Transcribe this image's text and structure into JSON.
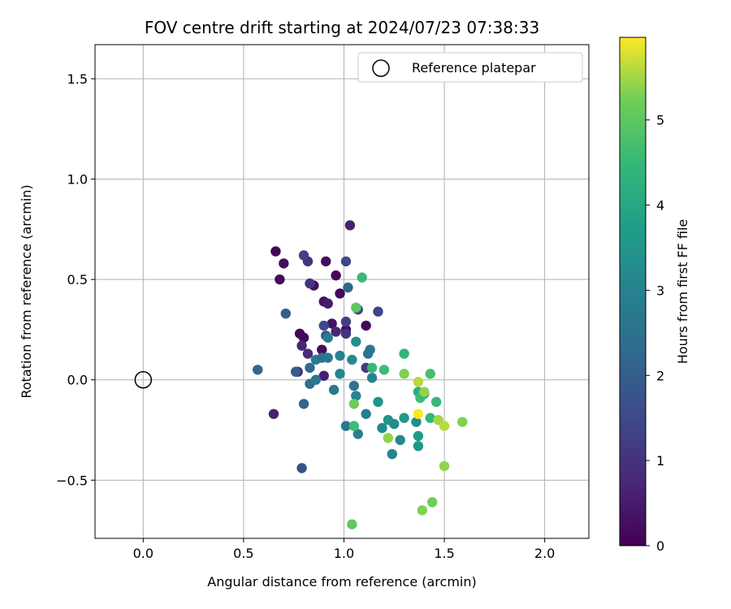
{
  "chart_data": {
    "type": "scatter",
    "title": "FOV centre drift starting at 2024/07/23 07:38:33",
    "xlabel": "Angular distance from reference (arcmin)",
    "ylabel": "Rotation from reference (arcmin)",
    "colorbar_label": "Hours from first FF file",
    "xlim": [
      -0.24,
      2.22
    ],
    "ylim": [
      -0.79,
      1.67
    ],
    "xticks": [
      0.0,
      0.5,
      1.0,
      1.5,
      2.0
    ],
    "xtick_labels": [
      "0.0",
      "0.5",
      "1.0",
      "1.5",
      "2.0"
    ],
    "yticks": [
      -0.5,
      0.0,
      0.5,
      1.0,
      1.5
    ],
    "ytick_labels": [
      "−0.5",
      "0.0",
      "0.5",
      "1.0",
      "1.5"
    ],
    "clim": [
      0,
      5.97
    ],
    "cticks": [
      0,
      1,
      2,
      3,
      4,
      5
    ],
    "ctick_labels": [
      "0",
      "1",
      "2",
      "3",
      "4",
      "5"
    ],
    "colormap": "viridis",
    "grid": true,
    "legend_position": "top-right",
    "reference": {
      "label": "Reference platepar",
      "x": 0.0,
      "y": 0.0
    },
    "points": [
      [
        0.66,
        0.64,
        0.1
      ],
      [
        0.7,
        0.58,
        0.2
      ],
      [
        0.68,
        0.5,
        0.15
      ],
      [
        0.78,
        0.23,
        0.1
      ],
      [
        0.8,
        0.21,
        0.15
      ],
      [
        0.85,
        0.47,
        0.25
      ],
      [
        0.91,
        0.59,
        0.2
      ],
      [
        0.96,
        0.52,
        0.1
      ],
      [
        0.98,
        0.43,
        0.15
      ],
      [
        0.9,
        0.39,
        0.3
      ],
      [
        0.92,
        0.38,
        0.5
      ],
      [
        0.89,
        0.15,
        0.2
      ],
      [
        0.94,
        0.28,
        0.3
      ],
      [
        1.01,
        0.25,
        0.25
      ],
      [
        1.03,
        0.77,
        0.6
      ],
      [
        1.11,
        0.27,
        0.15
      ],
      [
        0.82,
        0.59,
        1.0
      ],
      [
        0.8,
        0.62,
        1.3
      ],
      [
        0.83,
        0.48,
        1.0
      ],
      [
        0.79,
        0.17,
        0.7
      ],
      [
        0.82,
        0.13,
        0.8
      ],
      [
        0.9,
        0.02,
        0.6
      ],
      [
        0.77,
        0.04,
        0.6
      ],
      [
        0.65,
        -0.17,
        0.6
      ],
      [
        0.96,
        0.24,
        0.7
      ],
      [
        1.01,
        0.23,
        1.0
      ],
      [
        1.01,
        0.59,
        1.5
      ],
      [
        0.71,
        0.33,
        2.0
      ],
      [
        0.9,
        0.27,
        1.5
      ],
      [
        0.91,
        0.22,
        1.8
      ],
      [
        1.02,
        0.46,
        2.2
      ],
      [
        1.07,
        0.35,
        1.6
      ],
      [
        1.17,
        0.34,
        1.4
      ],
      [
        1.11,
        0.06,
        1.2
      ],
      [
        1.01,
        0.29,
        1.3
      ],
      [
        0.57,
        0.05,
        2.2
      ],
      [
        0.76,
        0.04,
        2.0
      ],
      [
        0.8,
        -0.12,
        2.2
      ],
      [
        0.79,
        -0.44,
        1.7
      ],
      [
        0.83,
        0.06,
        2.3
      ],
      [
        0.83,
        -0.02,
        2.4
      ],
      [
        0.86,
        0.0,
        2.6
      ],
      [
        0.86,
        0.1,
        2.8
      ],
      [
        0.89,
        0.11,
        2.5
      ],
      [
        0.92,
        0.21,
        2.8
      ],
      [
        0.92,
        0.11,
        2.7
      ],
      [
        0.95,
        -0.05,
        2.8
      ],
      [
        0.98,
        0.12,
        3.0
      ],
      [
        0.98,
        0.03,
        3.1
      ],
      [
        1.04,
        0.1,
        3.2
      ],
      [
        1.05,
        -0.03,
        2.6
      ],
      [
        1.06,
        -0.08,
        3.0
      ],
      [
        1.06,
        0.19,
        3.3
      ],
      [
        1.07,
        -0.27,
        2.9
      ],
      [
        1.01,
        -0.23,
        2.7
      ],
      [
        1.11,
        -0.17,
        2.9
      ],
      [
        1.12,
        0.13,
        2.6
      ],
      [
        1.14,
        0.01,
        3.0
      ],
      [
        1.17,
        -0.11,
        3.5
      ],
      [
        1.19,
        -0.24,
        3.2
      ],
      [
        1.22,
        -0.2,
        3.4
      ],
      [
        1.24,
        -0.37,
        3.0
      ],
      [
        1.25,
        -0.22,
        3.2
      ],
      [
        1.28,
        -0.3,
        3.1
      ],
      [
        1.3,
        -0.19,
        3.6
      ],
      [
        1.36,
        -0.21,
        3.3
      ],
      [
        1.37,
        -0.28,
        3.7
      ],
      [
        1.37,
        -0.33,
        3.5
      ],
      [
        1.13,
        0.15,
        2.6
      ],
      [
        1.14,
        0.06,
        4.5
      ],
      [
        1.2,
        0.05,
        4.6
      ],
      [
        1.3,
        0.13,
        4.4
      ],
      [
        1.37,
        -0.06,
        4.2
      ],
      [
        1.38,
        -0.09,
        4.6
      ],
      [
        1.4,
        -0.07,
        4.3
      ],
      [
        1.43,
        -0.19,
        4.4
      ],
      [
        1.46,
        -0.11,
        4.5
      ],
      [
        1.43,
        0.03,
        4.7
      ],
      [
        1.05,
        -0.23,
        4.6
      ],
      [
        1.09,
        0.51,
        4.5
      ],
      [
        1.06,
        0.36,
        5.0
      ],
      [
        1.05,
        -0.12,
        5.2
      ],
      [
        1.04,
        -0.72,
        5.0
      ],
      [
        1.22,
        -0.29,
        5.4
      ],
      [
        1.3,
        0.03,
        5.3
      ],
      [
        1.37,
        -0.01,
        5.6
      ],
      [
        1.4,
        -0.06,
        5.4
      ],
      [
        1.47,
        -0.2,
        5.5
      ],
      [
        1.5,
        -0.23,
        5.6
      ],
      [
        1.59,
        -0.21,
        5.3
      ],
      [
        1.5,
        -0.43,
        5.4
      ],
      [
        1.39,
        -0.65,
        5.3
      ],
      [
        1.44,
        -0.61,
        5.2
      ],
      [
        1.37,
        -0.17,
        5.97
      ]
    ]
  }
}
